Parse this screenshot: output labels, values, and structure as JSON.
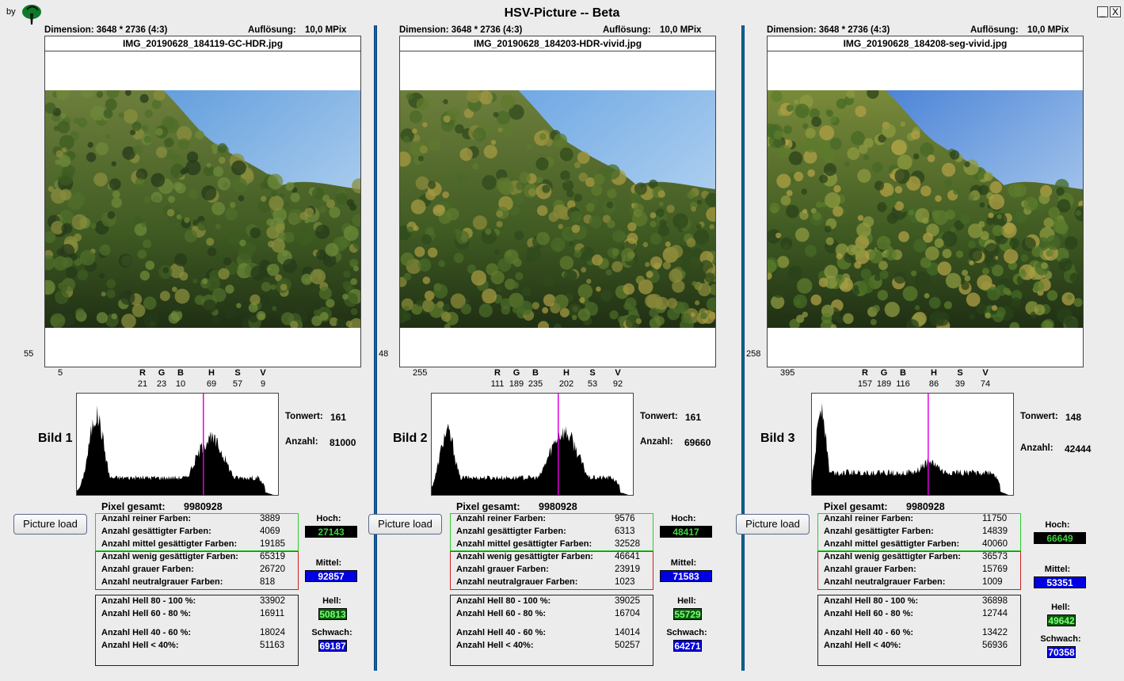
{
  "window": {
    "byline": "by",
    "title": "HSV-Picture -- Beta",
    "minimize_label": "_",
    "close_label": "X"
  },
  "panels": [
    {
      "dimension": "Dimension: 3648 * 2736 (4:3)",
      "resolution_label": "Auflösung:",
      "resolution": "10,0 MPix",
      "filename": "IMG_20190628_184119-GC-HDR.jpg",
      "coord_y": "55",
      "coord_x": "5",
      "channels": [
        {
          "name": "R",
          "value": "21"
        },
        {
          "name": "G",
          "value": "23"
        },
        {
          "name": "B",
          "value": "10"
        },
        {
          "name": "H",
          "value": "69"
        },
        {
          "name": "S",
          "value": "57"
        },
        {
          "name": "V",
          "value": "9"
        }
      ],
      "bild": "Bild 1",
      "tonwert_label": "Tonwert:",
      "tonwert": "161",
      "anzahl_label": "Anzahl:",
      "anzahl": "81000",
      "pixel_gesamt_label": "Pixel gesamt:",
      "pixel_gesamt": "9980928",
      "load_button": "Picture load",
      "green_rows": [
        {
          "label": "Anzahl reiner Farben:",
          "value": "3889"
        },
        {
          "label": "Anzahl gesättigter Farben:",
          "value": "4069"
        },
        {
          "label": "Anzahl mittel gesättigter Farben:",
          "value": "19185"
        }
      ],
      "red_rows": [
        {
          "label": "Anzahl wenig gesättigter Farben:",
          "value": "65319"
        },
        {
          "label": "Anzahl grauer Farben:",
          "value": "26720"
        },
        {
          "label": "Anzahl neutralgrauer Farben:",
          "value": "818"
        }
      ],
      "bright_rows": [
        {
          "label": "Anzahl Hell 80 - 100 %:",
          "value": "33902"
        },
        {
          "label": "Anzahl Hell 60 - 80 %:",
          "value": "16911"
        },
        {
          "label": "Anzahl Hell 40 - 60 %:",
          "value": "18024"
        },
        {
          "label": "Anzahl Hell < 40%:",
          "value": "51163"
        }
      ],
      "hoch_label": "Hoch:",
      "hoch": "27143",
      "mittel_label": "Mittel:",
      "mittel": "92857",
      "hell_label": "Hell:",
      "hell": "50813",
      "schwach_label": "Schwach:",
      "schwach": "69187",
      "histogram": {
        "marker_tonwert": 161,
        "peak_left": 0.78,
        "peak_right": 0.55,
        "left_center": 25,
        "right_center": 170
      }
    },
    {
      "dimension": "Dimension: 3648 * 2736 (4:3)",
      "resolution_label": "Auflösung:",
      "resolution": "10,0 MPix",
      "filename": "IMG_20190628_184203-HDR-vivid.jpg",
      "coord_y": "48",
      "coord_x": "255",
      "channels": [
        {
          "name": "R",
          "value": "111"
        },
        {
          "name": "G",
          "value": "189"
        },
        {
          "name": "B",
          "value": "235"
        },
        {
          "name": "H",
          "value": "202"
        },
        {
          "name": "S",
          "value": "53"
        },
        {
          "name": "V",
          "value": "92"
        }
      ],
      "bild": "Bild 2",
      "tonwert_label": "Tonwert:",
      "tonwert": "161",
      "anzahl_label": "Anzahl:",
      "anzahl": "69660",
      "pixel_gesamt_label": "Pixel gesamt:",
      "pixel_gesamt": "9980928",
      "load_button": "Picture load",
      "green_rows": [
        {
          "label": "Anzahl reiner Farben:",
          "value": "9576"
        },
        {
          "label": "Anzahl gesättigter Farben:",
          "value": "6313"
        },
        {
          "label": "Anzahl mittel gesättigter Farben:",
          "value": "32528"
        }
      ],
      "red_rows": [
        {
          "label": "Anzahl wenig gesättigter Farben:",
          "value": "46641"
        },
        {
          "label": "Anzahl grauer Farben:",
          "value": "23919"
        },
        {
          "label": "Anzahl neutralgrauer Farben:",
          "value": "1023"
        }
      ],
      "bright_rows": [
        {
          "label": "Anzahl Hell 80 - 100 %:",
          "value": "39025"
        },
        {
          "label": "Anzahl Hell 60 - 80 %:",
          "value": "16704"
        },
        {
          "label": "Anzahl Hell 40 - 60 %:",
          "value": "14014"
        },
        {
          "label": "Anzahl Hell < 40%:",
          "value": "50257"
        }
      ],
      "hoch_label": "Hoch:",
      "hoch": "48417",
      "mittel_label": "Mittel:",
      "mittel": "71583",
      "hell_label": "Hell:",
      "hell": "55729",
      "schwach_label": "Schwach:",
      "schwach": "64271",
      "histogram": {
        "marker_tonwert": 161,
        "peak_left": 0.62,
        "peak_right": 0.62,
        "left_center": 20,
        "right_center": 168
      }
    },
    {
      "dimension": "Dimension: 3648 * 2736 (4:3)",
      "resolution_label": "Auflösung:",
      "resolution": "10,0 MPix",
      "filename": "IMG_20190628_184208-seg-vivid.jpg",
      "coord_y": "258",
      "coord_x": "395",
      "channels": [
        {
          "name": "R",
          "value": "157"
        },
        {
          "name": "G",
          "value": "189"
        },
        {
          "name": "B",
          "value": "116"
        },
        {
          "name": "H",
          "value": "86"
        },
        {
          "name": "S",
          "value": "39"
        },
        {
          "name": "V",
          "value": "74"
        }
      ],
      "bild": "Bild 3",
      "tonwert_label": "Tonwert:",
      "tonwert": "148",
      "anzahl_label": "Anzahl:",
      "anzahl": "42444",
      "pixel_gesamt_label": "Pixel gesamt:",
      "pixel_gesamt": "9980928",
      "load_button": "Picture load",
      "green_rows": [
        {
          "label": "Anzahl reiner Farben:",
          "value": "11750"
        },
        {
          "label": "Anzahl gesättigter Farben:",
          "value": "14839"
        },
        {
          "label": "Anzahl mittel gesättigter Farben:",
          "value": "40060"
        }
      ],
      "red_rows": [
        {
          "label": "Anzahl wenig gesättigter Farben:",
          "value": "36573"
        },
        {
          "label": "Anzahl grauer Farben:",
          "value": "15769"
        },
        {
          "label": "Anzahl neutralgrauer Farben:",
          "value": "1009"
        }
      ],
      "bright_rows": [
        {
          "label": "Anzahl Hell 80 - 100 %:",
          "value": "36898"
        },
        {
          "label": "Anzahl Hell 60 - 80 %:",
          "value": "12744"
        },
        {
          "label": "Anzahl Hell 40 - 60 %:",
          "value": "13422"
        },
        {
          "label": "Anzahl Hell < 40%:",
          "value": "56936"
        }
      ],
      "hoch_label": "Hoch:",
      "hoch": "66649",
      "mittel_label": "Mittel:",
      "mittel": "53351",
      "hell_label": "Hell:",
      "hell": "49642",
      "schwach_label": "Schwach:",
      "schwach": "70358",
      "histogram": {
        "marker_tonwert": 148,
        "peak_left": 0.88,
        "peak_right": 0.32,
        "left_center": 12,
        "right_center": 150
      }
    }
  ],
  "colors": {
    "separator": "#0a6d7f",
    "green_box": "#2ecc2e",
    "red_box": "#cc2020",
    "marker": "#e000e0"
  }
}
